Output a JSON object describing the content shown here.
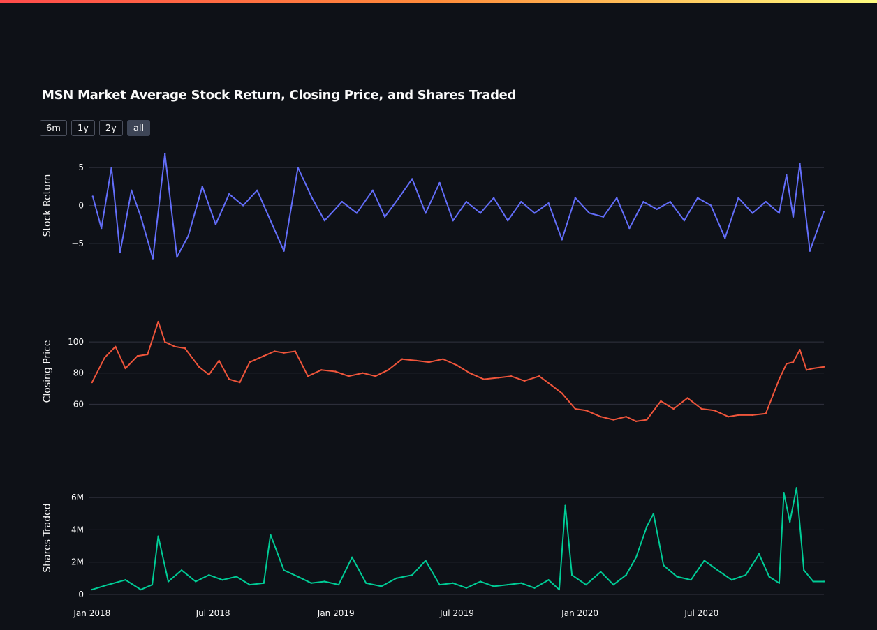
{
  "title": "MSN Market Average Stock Return, Closing Price, and Shares Traded",
  "range_buttons": [
    {
      "label": "6m",
      "active": false
    },
    {
      "label": "1y",
      "active": false
    },
    {
      "label": "2y",
      "active": false
    },
    {
      "label": "all",
      "active": true
    }
  ],
  "colors": {
    "background": "#0e1117",
    "grid": "#31333f",
    "return_line": "#636efa",
    "price_line": "#ef553b",
    "volume_line": "#00cc96"
  },
  "chart_data": {
    "type": "line",
    "x_range": [
      "2017-12-28",
      "2020-12-31"
    ],
    "x_tick_labels": [
      {
        "date": "2018-01-01",
        "label": "Jan 2018"
      },
      {
        "date": "2018-07-01",
        "label": "Jul 2018"
      },
      {
        "date": "2019-01-01",
        "label": "Jan 2019"
      },
      {
        "date": "2019-07-01",
        "label": "Jul 2019"
      },
      {
        "date": "2020-01-01",
        "label": "Jan 2020"
      },
      {
        "date": "2020-07-01",
        "label": "Jul 2020"
      }
    ],
    "panels": [
      {
        "ylabel": "Stock Return",
        "series_key": "return",
        "ylim": [
          -7.5,
          7.5
        ],
        "y_ticks": [
          {
            "value": 5,
            "label": "5"
          },
          {
            "value": 0,
            "label": "0"
          },
          {
            "value": -5,
            "label": "−5"
          }
        ],
        "x": [
          "2018-01-02",
          "2018-01-15",
          "2018-01-30",
          "2018-02-12",
          "2018-03-01",
          "2018-03-15",
          "2018-04-02",
          "2018-04-20",
          "2018-05-08",
          "2018-05-25",
          "2018-06-15",
          "2018-07-05",
          "2018-07-25",
          "2018-08-15",
          "2018-09-05",
          "2018-09-25",
          "2018-10-15",
          "2018-11-05",
          "2018-11-26",
          "2018-12-15",
          "2019-01-10",
          "2019-02-01",
          "2019-02-25",
          "2019-03-15",
          "2019-04-05",
          "2019-04-25",
          "2019-05-15",
          "2019-06-05",
          "2019-06-25",
          "2019-07-15",
          "2019-08-05",
          "2019-08-25",
          "2019-09-15",
          "2019-10-05",
          "2019-10-25",
          "2019-11-15",
          "2019-12-05",
          "2019-12-25",
          "2020-01-15",
          "2020-02-05",
          "2020-02-25",
          "2020-03-15",
          "2020-04-05",
          "2020-04-25",
          "2020-05-15",
          "2020-06-05",
          "2020-06-25",
          "2020-07-15",
          "2020-08-05",
          "2020-08-25",
          "2020-09-15",
          "2020-10-05",
          "2020-10-25",
          "2020-11-05",
          "2020-11-15",
          "2020-11-25",
          "2020-12-10",
          "2020-12-31"
        ],
        "values": [
          1.2,
          -3.0,
          5.0,
          -6.2,
          2.0,
          -1.5,
          -7.0,
          6.8,
          -6.8,
          -4.0,
          2.5,
          -2.5,
          1.5,
          0.0,
          2.0,
          -2.0,
          -6.0,
          5.0,
          1.0,
          -2.0,
          0.5,
          -1.0,
          2.0,
          -1.5,
          1.0,
          3.5,
          -1.0,
          3.0,
          -2.0,
          0.5,
          -1.0,
          1.0,
          -2.0,
          0.5,
          -1.0,
          0.3,
          -4.5,
          1.0,
          -1.0,
          -1.5,
          1.0,
          -3.0,
          0.5,
          -0.5,
          0.5,
          -2.0,
          1.0,
          0.0,
          -4.3,
          1.0,
          -1.0,
          0.5,
          -1.0,
          4.0,
          -1.5,
          5.5,
          -6.0,
          -0.8
        ]
      },
      {
        "ylabel": "Closing Price",
        "series_key": "price",
        "ylim": [
          44,
          118
        ],
        "y_ticks": [
          {
            "value": 100,
            "label": "100"
          },
          {
            "value": 80,
            "label": "80"
          },
          {
            "value": 60,
            "label": "60"
          }
        ],
        "x": [
          "2018-01-01",
          "2018-01-20",
          "2018-02-05",
          "2018-02-20",
          "2018-03-10",
          "2018-03-25",
          "2018-04-10",
          "2018-04-20",
          "2018-05-05",
          "2018-05-20",
          "2018-06-10",
          "2018-06-25",
          "2018-07-10",
          "2018-07-25",
          "2018-08-10",
          "2018-08-25",
          "2018-09-15",
          "2018-10-01",
          "2018-10-15",
          "2018-11-01",
          "2018-11-20",
          "2018-12-10",
          "2018-12-31",
          "2019-01-20",
          "2019-02-10",
          "2019-03-01",
          "2019-03-20",
          "2019-04-10",
          "2019-05-01",
          "2019-05-20",
          "2019-06-10",
          "2019-07-01",
          "2019-07-20",
          "2019-08-10",
          "2019-09-01",
          "2019-09-20",
          "2019-10-10",
          "2019-11-01",
          "2019-11-20",
          "2019-12-05",
          "2019-12-25",
          "2020-01-10",
          "2020-02-01",
          "2020-02-20",
          "2020-03-10",
          "2020-03-25",
          "2020-04-10",
          "2020-05-01",
          "2020-05-20",
          "2020-06-10",
          "2020-07-01",
          "2020-07-20",
          "2020-08-10",
          "2020-08-25",
          "2020-09-15",
          "2020-10-05",
          "2020-10-25",
          "2020-11-05",
          "2020-11-15",
          "2020-11-25",
          "2020-12-05",
          "2020-12-15",
          "2020-12-31"
        ],
        "values": [
          74,
          90,
          97,
          83,
          91,
          92,
          113,
          100,
          97,
          96,
          84,
          79,
          88,
          76,
          74,
          87,
          91,
          94,
          93,
          94,
          78,
          82,
          81,
          78,
          80,
          78,
          82,
          89,
          88,
          87,
          89,
          85,
          80,
          76,
          77,
          78,
          75,
          78,
          72,
          67,
          57,
          56,
          52,
          50,
          52,
          49,
          50,
          62,
          57,
          64,
          57,
          56,
          52,
          53,
          53,
          54,
          76,
          86,
          87,
          95,
          82,
          83,
          84
        ]
      },
      {
        "ylabel": "Shares Traded",
        "series_key": "volume",
        "ylim": [
          0,
          7000000
        ],
        "y_ticks": [
          {
            "value": 6000000,
            "label": "6M"
          },
          {
            "value": 4000000,
            "label": "4M"
          },
          {
            "value": 2000000,
            "label": "2M"
          },
          {
            "value": 0,
            "label": "0"
          }
        ],
        "x": [
          "2018-01-01",
          "2018-01-25",
          "2018-02-20",
          "2018-03-15",
          "2018-04-01",
          "2018-04-10",
          "2018-04-25",
          "2018-05-15",
          "2018-06-05",
          "2018-06-25",
          "2018-07-15",
          "2018-08-05",
          "2018-08-25",
          "2018-09-15",
          "2018-09-25",
          "2018-10-15",
          "2018-11-05",
          "2018-11-25",
          "2018-12-15",
          "2019-01-05",
          "2019-01-25",
          "2019-02-15",
          "2019-03-10",
          "2019-04-01",
          "2019-04-25",
          "2019-05-15",
          "2019-06-05",
          "2019-06-25",
          "2019-07-15",
          "2019-08-05",
          "2019-08-25",
          "2019-09-15",
          "2019-10-05",
          "2019-10-25",
          "2019-11-15",
          "2019-12-01",
          "2019-12-10",
          "2019-12-20",
          "2020-01-10",
          "2020-02-01",
          "2020-02-20",
          "2020-03-10",
          "2020-03-25",
          "2020-04-10",
          "2020-04-20",
          "2020-05-05",
          "2020-05-25",
          "2020-06-15",
          "2020-07-05",
          "2020-07-25",
          "2020-08-15",
          "2020-09-05",
          "2020-09-25",
          "2020-10-10",
          "2020-10-25",
          "2020-11-01",
          "2020-11-10",
          "2020-11-20",
          "2020-12-01",
          "2020-12-15",
          "2020-12-31"
        ],
        "values": [
          300000,
          600000,
          900000,
          300000,
          600000,
          3600000,
          800000,
          1500000,
          800000,
          1200000,
          900000,
          1100000,
          600000,
          700000,
          3700000,
          1500000,
          1100000,
          700000,
          800000,
          600000,
          2300000,
          700000,
          500000,
          1000000,
          1200000,
          2100000,
          600000,
          700000,
          400000,
          800000,
          500000,
          600000,
          700000,
          400000,
          900000,
          300000,
          5500000,
          1200000,
          600000,
          1400000,
          600000,
          1200000,
          2300000,
          4200000,
          5000000,
          1800000,
          1100000,
          900000,
          2100000,
          1500000,
          900000,
          1200000,
          2500000,
          1100000,
          700000,
          6300000,
          4500000,
          6600000,
          1500000,
          800000,
          800000
        ]
      }
    ]
  }
}
